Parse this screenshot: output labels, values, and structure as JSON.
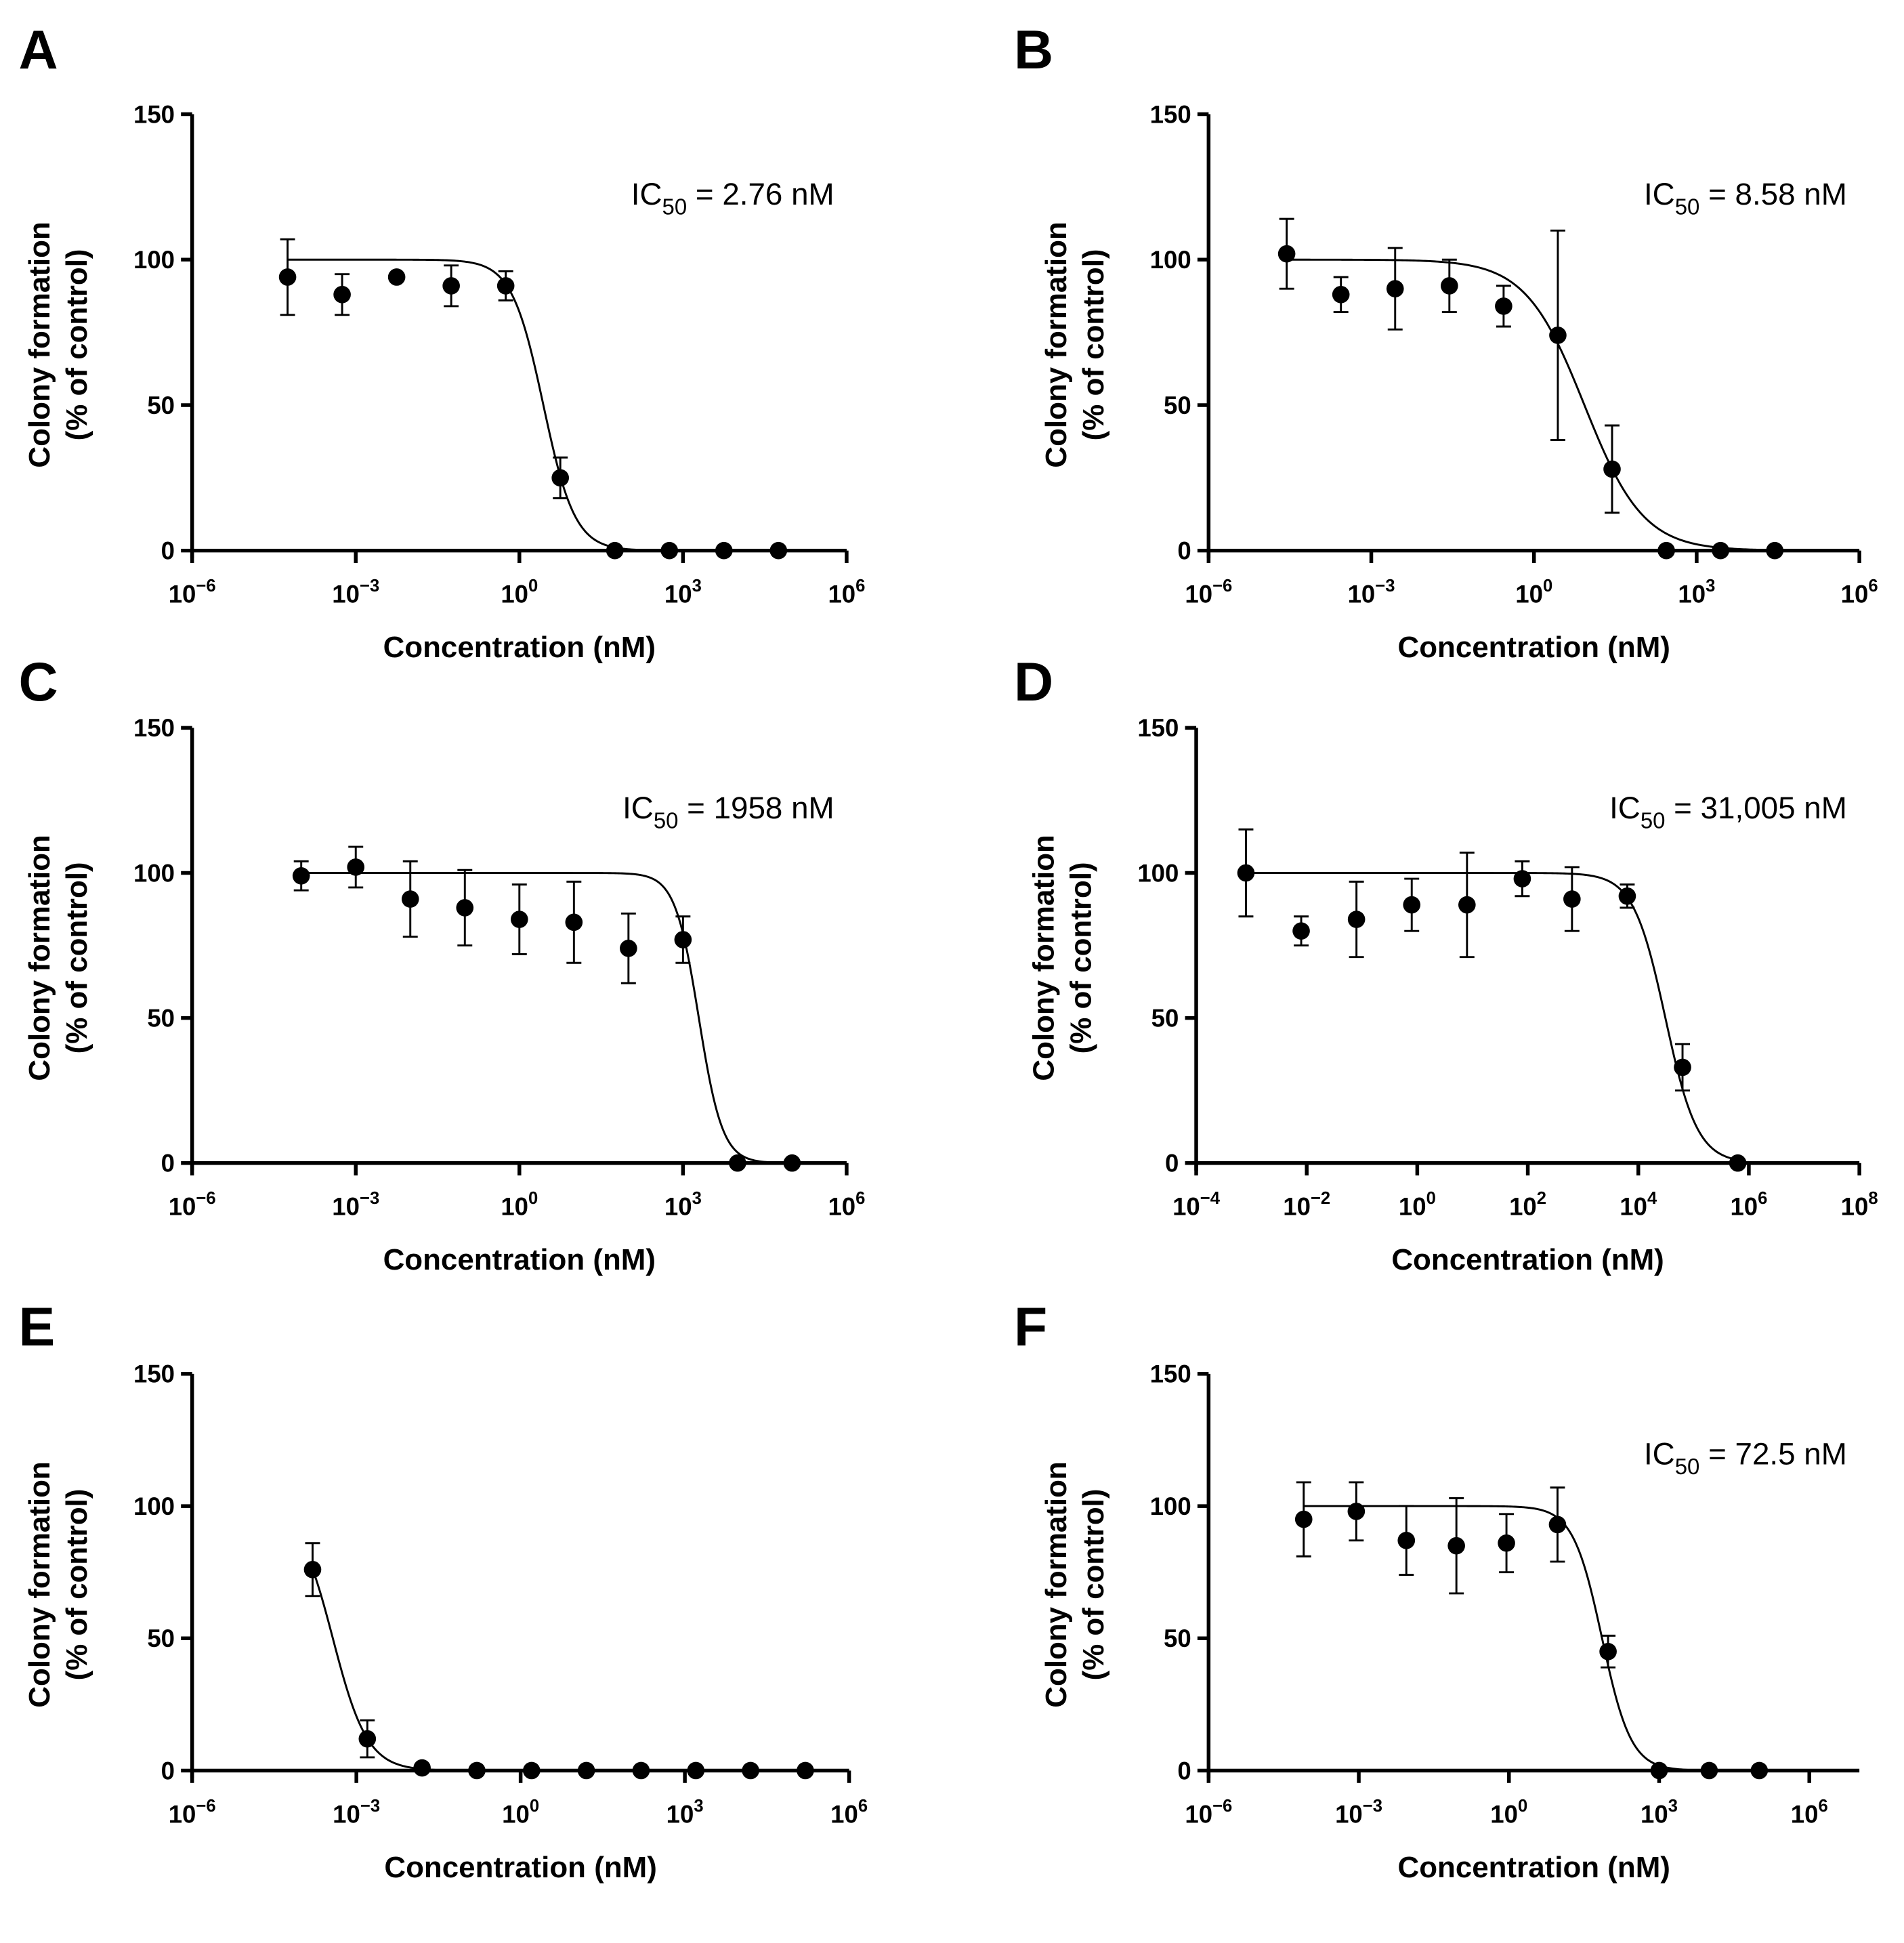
{
  "chart_data": [
    {
      "panel": "A",
      "type": "scatter",
      "ylabel": [
        "Colony formation",
        "(% of control)"
      ],
      "xlabel": "Concentration (nM)",
      "ic50": {
        "prefix": "IC",
        "sub": "50",
        "value": " = 2.76 nM"
      },
      "log_ic50": 0.44,
      "hill": 1.5,
      "x_scale": "log10",
      "xlim_log": [
        -6,
        6
      ],
      "x_tick_exponents": [
        -6,
        -3,
        0,
        3,
        6
      ],
      "ylim": [
        0,
        150
      ],
      "y_ticks": [
        "0",
        "50",
        "100",
        "150"
      ],
      "x_log": [
        -4.25,
        -3.25,
        -2.25,
        -1.25,
        -0.25,
        0.75,
        1.75,
        2.75,
        3.75,
        4.75
      ],
      "y": [
        94,
        88,
        94,
        91,
        91,
        25,
        0,
        0,
        0,
        0
      ],
      "err": [
        13,
        7,
        0,
        7,
        5,
        7,
        0,
        0,
        0,
        0
      ]
    },
    {
      "panel": "B",
      "type": "scatter",
      "ylabel": [
        "Colony formation",
        "(% of control)"
      ],
      "xlabel": "Concentration (nM)",
      "ic50": {
        "prefix": "IC",
        "sub": "50",
        "value": " = 8.58 nM"
      },
      "log_ic50": 0.93,
      "hill": 0.8,
      "x_scale": "log10",
      "xlim_log": [
        -6,
        6
      ],
      "x_tick_exponents": [
        -6,
        -3,
        0,
        3,
        6
      ],
      "ylim": [
        0,
        150
      ],
      "y_ticks": [
        "0",
        "50",
        "100",
        "150"
      ],
      "x_log": [
        -4.56,
        -3.56,
        -2.56,
        -1.56,
        -0.56,
        0.44,
        1.44,
        2.44,
        3.44,
        4.44
      ],
      "y": [
        102,
        88,
        90,
        91,
        84,
        74,
        28,
        0,
        0,
        0
      ],
      "err": [
        12,
        6,
        14,
        9,
        7,
        36,
        15,
        0,
        0,
        0
      ]
    },
    {
      "panel": "C",
      "type": "scatter",
      "ylabel": [
        "Colony formation",
        "(% of control)"
      ],
      "xlabel": "Concentration (nM)",
      "ic50": {
        "prefix": "IC",
        "sub": "50",
        "value": " = 1958 nM"
      },
      "log_ic50": 3.29,
      "hill": 2,
      "x_scale": "log10",
      "xlim_log": [
        -6,
        6
      ],
      "x_tick_exponents": [
        -6,
        -3,
        0,
        3,
        6
      ],
      "ylim": [
        0,
        150
      ],
      "y_ticks": [
        "0",
        "50",
        "100",
        "150"
      ],
      "x_log": [
        -4,
        -3,
        -2,
        -1,
        0,
        1,
        2,
        3,
        4,
        5
      ],
      "y": [
        99,
        102,
        91,
        88,
        84,
        83,
        74,
        77,
        0,
        0
      ],
      "err": [
        5,
        7,
        13,
        13,
        12,
        14,
        12,
        8,
        0,
        0
      ]
    },
    {
      "panel": "D",
      "type": "scatter",
      "ylabel": [
        "Colony formation",
        "(% of control)"
      ],
      "xlabel": "Concentration (nM)",
      "ic50": {
        "prefix": "IC",
        "sub": "50",
        "value": " = 31,005 nM"
      },
      "log_ic50": 4.49,
      "hill": 1.5,
      "x_scale": "log10",
      "xlim_log": [
        -4,
        8
      ],
      "x_tick_exponents": [
        -4,
        -2,
        0,
        2,
        4,
        6,
        8
      ],
      "ylim": [
        0,
        150
      ],
      "y_ticks": [
        "0",
        "50",
        "100",
        "150"
      ],
      "x_log": [
        -3.1,
        -2.1,
        -1.1,
        -0.1,
        0.9,
        1.9,
        2.8,
        3.8,
        4.8,
        5.8
      ],
      "y": [
        100,
        80,
        84,
        89,
        89,
        98,
        91,
        92,
        33,
        0
      ],
      "err": [
        15,
        5,
        13,
        9,
        18,
        6,
        11,
        4,
        8,
        0
      ]
    },
    {
      "panel": "E",
      "type": "scatter",
      "ylabel": [
        "Colony formation",
        "(% of control)"
      ],
      "xlabel": "Concentration (nM)",
      "ic50": null,
      "log_ic50": -3.43,
      "hill": 1.365,
      "x_scale": "log10",
      "xlim_log": [
        -6,
        6
      ],
      "x_tick_exponents": [
        -6,
        -3,
        0,
        3,
        6
      ],
      "ylim": [
        0,
        150
      ],
      "y_ticks": [
        "0",
        "50",
        "100",
        "150"
      ],
      "x_log": [
        -3.8,
        -2.8,
        -1.8,
        -0.8,
        0.2,
        1.2,
        2.2,
        3.2,
        4.2,
        5.2
      ],
      "y": [
        76,
        12,
        1,
        0,
        0,
        0,
        0,
        0,
        0,
        0
      ],
      "err": [
        10,
        7,
        0,
        0,
        0,
        0,
        0,
        0,
        0,
        0
      ]
    },
    {
      "panel": "F",
      "type": "scatter",
      "ylabel": [
        "Colony formation",
        "(% of control)"
      ],
      "xlabel": "Concentration (nM)",
      "ic50": {
        "prefix": "IC",
        "sub": "50",
        "value": " = 72.5 nM"
      },
      "log_ic50": 1.86,
      "hill": 1.5,
      "x_scale": "log10",
      "xlim_log": [
        -6,
        7
      ],
      "x_tick_exponents": [
        -6,
        -3,
        0,
        3,
        6
      ],
      "ylim": [
        0,
        150
      ],
      "y_ticks": [
        "0",
        "50",
        "100",
        "150"
      ],
      "x_log": [
        -4.1,
        -3.05,
        -2.05,
        -1.05,
        -0.05,
        0.97,
        1.98,
        3,
        4,
        5
      ],
      "y": [
        95,
        98,
        87,
        85,
        86,
        93,
        45,
        0,
        0,
        0
      ],
      "err": [
        14,
        11,
        13,
        18,
        11,
        14,
        6,
        0,
        0,
        0
      ]
    }
  ]
}
